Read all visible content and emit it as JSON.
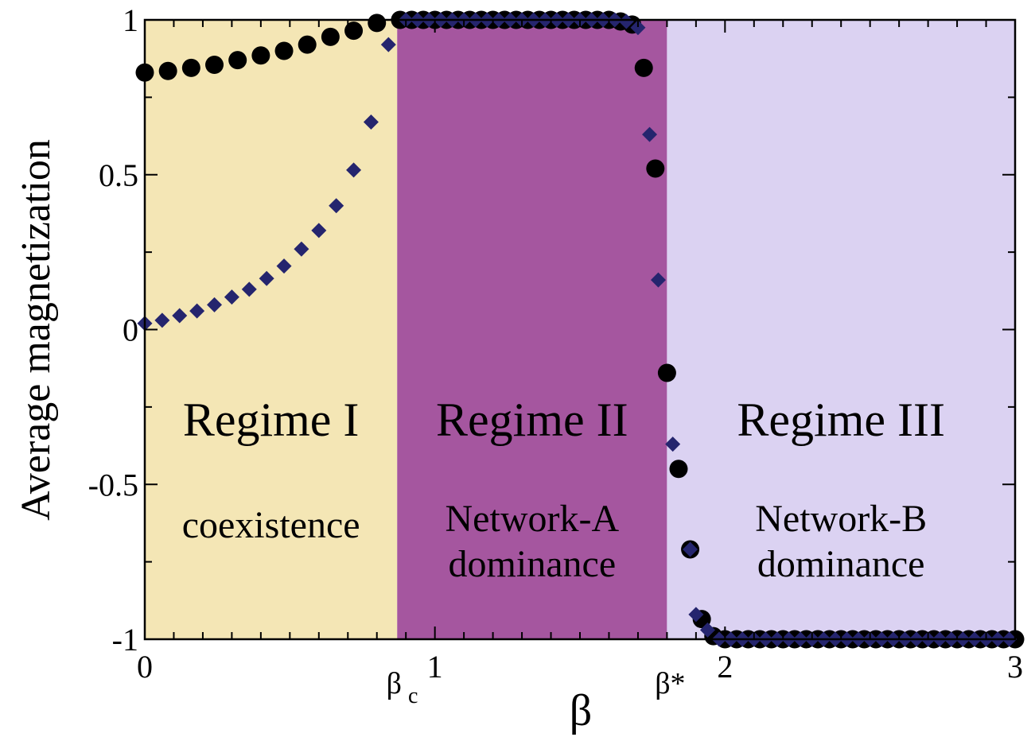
{
  "chart_data": {
    "type": "scatter",
    "title": "",
    "xlabel": "β",
    "ylabel": "Average magnetization",
    "xlim": [
      0,
      3
    ],
    "ylim": [
      -1,
      1
    ],
    "x_ticks": [
      {
        "value": 0,
        "label": "0"
      },
      {
        "value": 1,
        "label": "1"
      },
      {
        "value": 2,
        "label": "2"
      },
      {
        "value": 3,
        "label": "3"
      }
    ],
    "y_ticks": [
      {
        "value": 1,
        "label": "1"
      },
      {
        "value": 0.5,
        "label": "0.5"
      },
      {
        "value": 0,
        "label": "0"
      },
      {
        "value": -0.5,
        "label": "-0.5"
      },
      {
        "value": -1,
        "label": "-1"
      }
    ],
    "special_ticks": {
      "beta_c": {
        "value": 0.87,
        "main": "β",
        "sub": "c"
      },
      "beta_star": {
        "value": 1.8,
        "label": "β*"
      }
    },
    "regions": [
      {
        "x0": 0,
        "x1": 0.87,
        "color": "#f4e6b5",
        "title": "Regime I",
        "lines": [
          "coexistence"
        ]
      },
      {
        "x0": 0.87,
        "x1": 1.8,
        "color": "#a5569f",
        "title": "Regime II",
        "lines": [
          "Network-A",
          "dominance"
        ]
      },
      {
        "x0": 1.8,
        "x1": 3,
        "color": "#dbd2f2",
        "title": "Regime III",
        "lines": [
          "Network-B",
          "dominance"
        ]
      }
    ],
    "series": [
      {
        "marker": "circle",
        "color": "#000000",
        "points": [
          [
            0,
            0.83
          ],
          [
            0.08,
            0.835
          ],
          [
            0.16,
            0.845
          ],
          [
            0.24,
            0.855
          ],
          [
            0.32,
            0.87
          ],
          [
            0.4,
            0.885
          ],
          [
            0.48,
            0.9
          ],
          [
            0.56,
            0.92
          ],
          [
            0.64,
            0.945
          ],
          [
            0.72,
            0.965
          ],
          [
            0.8,
            0.99
          ],
          [
            0.88,
            1.0
          ],
          [
            0.92,
            1.0
          ],
          [
            0.96,
            1.0
          ],
          [
            1.0,
            1.0
          ],
          [
            1.04,
            1.0
          ],
          [
            1.08,
            1.0
          ],
          [
            1.12,
            1.0
          ],
          [
            1.16,
            1.0
          ],
          [
            1.2,
            1.0
          ],
          [
            1.24,
            1.0
          ],
          [
            1.28,
            1.0
          ],
          [
            1.32,
            1.0
          ],
          [
            1.36,
            1.0
          ],
          [
            1.4,
            1.0
          ],
          [
            1.44,
            1.0
          ],
          [
            1.48,
            1.0
          ],
          [
            1.52,
            1.0
          ],
          [
            1.56,
            1.0
          ],
          [
            1.6,
            1.0
          ],
          [
            1.64,
            0.995
          ],
          [
            1.68,
            0.985
          ],
          [
            1.72,
            0.845
          ],
          [
            1.76,
            0.52
          ],
          [
            1.8,
            -0.14
          ],
          [
            1.84,
            -0.45
          ],
          [
            1.88,
            -0.71
          ],
          [
            1.92,
            -0.935
          ],
          [
            1.96,
            -0.99
          ],
          [
            2.0,
            -1.0
          ],
          [
            2.04,
            -1.0
          ],
          [
            2.08,
            -1.0
          ],
          [
            2.12,
            -1.0
          ],
          [
            2.16,
            -1.0
          ],
          [
            2.2,
            -1.0
          ],
          [
            2.24,
            -1.0
          ],
          [
            2.28,
            -1.0
          ],
          [
            2.32,
            -1.0
          ],
          [
            2.36,
            -1.0
          ],
          [
            2.4,
            -1.0
          ],
          [
            2.44,
            -1.0
          ],
          [
            2.48,
            -1.0
          ],
          [
            2.52,
            -1.0
          ],
          [
            2.56,
            -1.0
          ],
          [
            2.6,
            -1.0
          ],
          [
            2.64,
            -1.0
          ],
          [
            2.68,
            -1.0
          ],
          [
            2.72,
            -1.0
          ],
          [
            2.76,
            -1.0
          ],
          [
            2.8,
            -1.0
          ],
          [
            2.84,
            -1.0
          ],
          [
            2.88,
            -1.0
          ],
          [
            2.92,
            -1.0
          ],
          [
            2.96,
            -1.0
          ],
          [
            3.0,
            -1.0
          ]
        ]
      },
      {
        "marker": "diamond",
        "color": "#25256e",
        "points": [
          [
            0,
            0.02
          ],
          [
            0.06,
            0.03
          ],
          [
            0.12,
            0.045
          ],
          [
            0.18,
            0.06
          ],
          [
            0.24,
            0.08
          ],
          [
            0.3,
            0.105
          ],
          [
            0.36,
            0.13
          ],
          [
            0.42,
            0.165
          ],
          [
            0.48,
            0.205
          ],
          [
            0.54,
            0.26
          ],
          [
            0.6,
            0.32
          ],
          [
            0.66,
            0.4
          ],
          [
            0.72,
            0.515
          ],
          [
            0.78,
            0.67
          ],
          [
            0.84,
            0.92
          ],
          [
            0.9,
            1.0
          ],
          [
            0.94,
            1.0
          ],
          [
            0.98,
            1.0
          ],
          [
            1.02,
            1.0
          ],
          [
            1.06,
            1.0
          ],
          [
            1.1,
            1.0
          ],
          [
            1.14,
            1.0
          ],
          [
            1.18,
            1.0
          ],
          [
            1.22,
            1.0
          ],
          [
            1.26,
            1.0
          ],
          [
            1.3,
            1.0
          ],
          [
            1.34,
            1.0
          ],
          [
            1.38,
            1.0
          ],
          [
            1.42,
            1.0
          ],
          [
            1.46,
            1.0
          ],
          [
            1.5,
            1.0
          ],
          [
            1.54,
            1.0
          ],
          [
            1.58,
            1.0
          ],
          [
            1.62,
            1.0
          ],
          [
            1.66,
            0.995
          ],
          [
            1.7,
            0.975
          ],
          [
            1.74,
            0.63
          ],
          [
            1.77,
            0.16
          ],
          [
            1.82,
            -0.37
          ],
          [
            1.88,
            -0.71
          ],
          [
            1.9,
            -0.92
          ],
          [
            1.94,
            -0.97
          ],
          [
            1.98,
            -1.0
          ],
          [
            2.02,
            -1.0
          ],
          [
            2.06,
            -1.0
          ],
          [
            2.1,
            -1.0
          ],
          [
            2.14,
            -1.0
          ],
          [
            2.18,
            -1.0
          ],
          [
            2.22,
            -1.0
          ],
          [
            2.26,
            -1.0
          ],
          [
            2.3,
            -1.0
          ],
          [
            2.34,
            -1.0
          ],
          [
            2.38,
            -1.0
          ],
          [
            2.42,
            -1.0
          ],
          [
            2.46,
            -1.0
          ],
          [
            2.5,
            -1.0
          ],
          [
            2.54,
            -1.0
          ],
          [
            2.58,
            -1.0
          ],
          [
            2.62,
            -1.0
          ],
          [
            2.66,
            -1.0
          ],
          [
            2.7,
            -1.0
          ],
          [
            2.74,
            -1.0
          ],
          [
            2.78,
            -1.0
          ],
          [
            2.82,
            -1.0
          ],
          [
            2.86,
            -1.0
          ],
          [
            2.9,
            -1.0
          ],
          [
            2.94,
            -1.0
          ],
          [
            2.98,
            -1.0
          ]
        ]
      }
    ],
    "grid": false,
    "legend": "none"
  }
}
